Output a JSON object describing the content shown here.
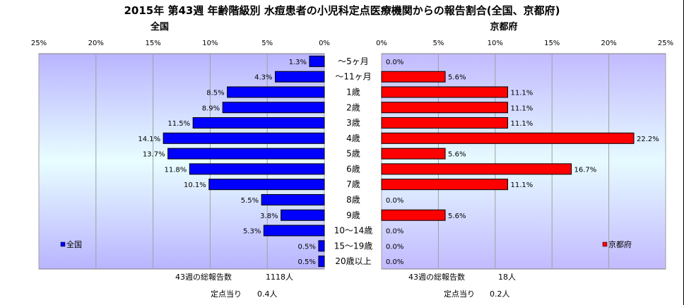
{
  "title": "2015年 第43週 年齢階級別 水痘患者の小児科定点医療機関からの報告割合(全国、京都府)",
  "colors": {
    "nation": "#0000ff",
    "kyoto": "#ff0000"
  },
  "chart_data": [
    {
      "type": "bar",
      "orientation": "horizontal",
      "direction": "right-to-left",
      "title": "全国",
      "categories": [
        "～5ヶ月",
        "～11ヶ月",
        "1歳",
        "2歳",
        "3歳",
        "4歳",
        "5歳",
        "6歳",
        "7歳",
        "8歳",
        "9歳",
        "10～14歳",
        "15～19歳",
        "20歳以上"
      ],
      "series": [
        {
          "name": "全国",
          "values": [
            1.3,
            4.3,
            8.5,
            8.9,
            11.5,
            14.1,
            13.7,
            11.8,
            10.1,
            5.5,
            3.8,
            5.3,
            0.5,
            0.5
          ]
        }
      ],
      "data_labels": [
        "1.3%",
        "4.3%",
        "8.5%",
        "8.9%",
        "11.5%",
        "14.1%",
        "13.7%",
        "11.8%",
        "10.1%",
        "5.5%",
        "3.8%",
        "5.3%",
        "0.5%",
        "0.5%"
      ],
      "xlim": [
        0,
        25
      ],
      "xticks": [
        "0%",
        "5%",
        "10%",
        "15%",
        "20%",
        "25%"
      ],
      "grid": true,
      "legend": "bottom-left",
      "footer": {
        "total_label": "43週の総報告数",
        "total_value": "1118人",
        "per_site_label": "定点当り",
        "per_site_value": "0.4人"
      }
    },
    {
      "type": "bar",
      "orientation": "horizontal",
      "direction": "left-to-right",
      "title": "京都府",
      "categories": [
        "～5ヶ月",
        "～11ヶ月",
        "1歳",
        "2歳",
        "3歳",
        "4歳",
        "5歳",
        "6歳",
        "7歳",
        "8歳",
        "9歳",
        "10～14歳",
        "15～19歳",
        "20歳以上"
      ],
      "series": [
        {
          "name": "京都府",
          "values": [
            0.0,
            5.6,
            11.1,
            11.1,
            11.1,
            22.2,
            5.6,
            16.7,
            11.1,
            0.0,
            5.6,
            0.0,
            0.0,
            0.0
          ]
        }
      ],
      "data_labels": [
        "0.0%",
        "5.6%",
        "11.1%",
        "11.1%",
        "11.1%",
        "22.2%",
        "5.6%",
        "16.7%",
        "11.1%",
        "0.0%",
        "5.6%",
        "0.0%",
        "0.0%",
        "0.0%"
      ],
      "xlim": [
        0,
        25
      ],
      "xticks": [
        "0%",
        "5%",
        "10%",
        "15%",
        "20%",
        "25%"
      ],
      "grid": true,
      "legend": "bottom-right",
      "footer": {
        "total_label": "43週の総報告数",
        "total_value": "18人",
        "per_site_label": "定点当り",
        "per_site_value": "0.2人"
      }
    }
  ]
}
